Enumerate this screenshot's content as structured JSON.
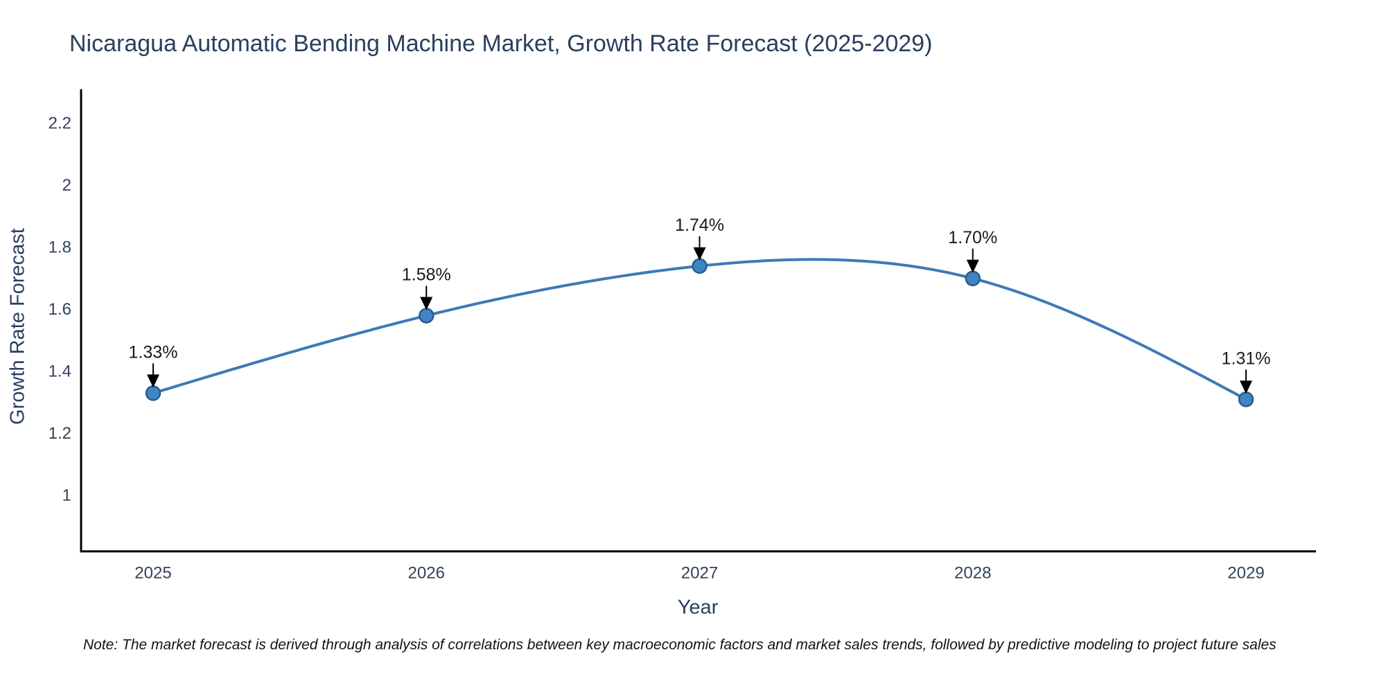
{
  "page": {
    "note": "Note: The market forecast is derived through analysis of correlations between key macroeconomic factors and market sales trends, followed by predictive modeling to project future sales"
  },
  "chart_data": {
    "type": "line",
    "line_shape": "spline",
    "title": "Nicaragua Automatic Bending Machine Market, Growth Rate Forecast (2025-2029)",
    "xlabel": "Year",
    "ylabel": "Growth Rate Forecast",
    "x": [
      2025,
      2026,
      2027,
      2028,
      2029
    ],
    "values": [
      1.33,
      1.58,
      1.74,
      1.7,
      1.31
    ],
    "point_labels": [
      "1.33%",
      "1.58%",
      "1.74%",
      "1.70%",
      "1.31%"
    ],
    "yticks": [
      1,
      1.2,
      1.4,
      1.6,
      1.8,
      2,
      2.2
    ],
    "ylim": [
      0.82,
      2.31
    ],
    "grid": false,
    "legend": false,
    "annotations_have_arrows": true,
    "colors": {
      "line": "#3d7ab5",
      "marker_fill": "#4084c1",
      "marker_edge": "#275d8e",
      "axis_line": "#000000",
      "title_text": "#2a3f5f",
      "tick_text": "#33425a",
      "annotation_text": "#1a1a1a",
      "arrow": "#000000"
    }
  }
}
